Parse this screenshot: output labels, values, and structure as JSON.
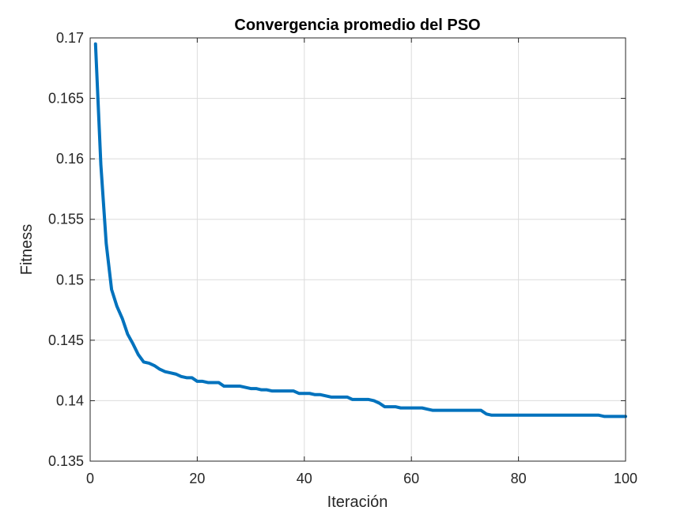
{
  "chart_data": {
    "type": "line",
    "title": "Convergencia promedio del PSO",
    "xlabel": "Iteración",
    "ylabel": "Fitness",
    "xlim": [
      0,
      100
    ],
    "ylim": [
      0.135,
      0.17
    ],
    "xticks": [
      0,
      20,
      40,
      60,
      80,
      100
    ],
    "yticks": [
      0.135,
      0.14,
      0.145,
      0.15,
      0.155,
      0.16,
      0.165,
      0.17
    ],
    "xtick_labels": [
      "0",
      "20",
      "40",
      "60",
      "80",
      "100"
    ],
    "ytick_labels": [
      "0.135",
      "0.14",
      "0.145",
      "0.15",
      "0.155",
      "0.16",
      "0.165",
      "0.17"
    ],
    "grid": true,
    "line_color": "#0072BD",
    "series": [
      {
        "x": [
          1,
          2,
          3,
          4,
          5,
          6,
          7,
          8,
          9,
          10,
          11,
          12,
          13,
          14,
          15,
          16,
          17,
          18,
          19,
          20,
          21,
          22,
          23,
          24,
          25,
          26,
          27,
          28,
          29,
          30,
          31,
          32,
          33,
          34,
          35,
          36,
          37,
          38,
          39,
          40,
          41,
          42,
          43,
          44,
          45,
          46,
          47,
          48,
          49,
          50,
          51,
          52,
          53,
          54,
          55,
          56,
          57,
          58,
          59,
          60,
          61,
          62,
          63,
          64,
          65,
          66,
          67,
          68,
          69,
          70,
          71,
          72,
          73,
          74,
          75,
          76,
          77,
          78,
          79,
          80,
          81,
          82,
          83,
          84,
          85,
          86,
          87,
          88,
          89,
          90,
          91,
          92,
          93,
          94,
          95,
          96,
          97,
          98,
          99,
          100
        ],
        "y": [
          0.1695,
          0.1595,
          0.153,
          0.1492,
          0.1478,
          0.1468,
          0.1455,
          0.1447,
          0.1438,
          0.1432,
          0.1431,
          0.1429,
          0.1426,
          0.1424,
          0.1423,
          0.1422,
          0.142,
          0.1419,
          0.1419,
          0.1416,
          0.1416,
          0.1415,
          0.1415,
          0.1415,
          0.1412,
          0.1412,
          0.1412,
          0.1412,
          0.1411,
          0.141,
          0.141,
          0.1409,
          0.1409,
          0.1408,
          0.1408,
          0.1408,
          0.1408,
          0.1408,
          0.1406,
          0.1406,
          0.1406,
          0.1405,
          0.1405,
          0.1404,
          0.1403,
          0.1403,
          0.1403,
          0.1403,
          0.1401,
          0.1401,
          0.1401,
          0.1401,
          0.14,
          0.1398,
          0.1395,
          0.1395,
          0.1395,
          0.1394,
          0.1394,
          0.1394,
          0.1394,
          0.1394,
          0.1393,
          0.1392,
          0.1392,
          0.1392,
          0.1392,
          0.1392,
          0.1392,
          0.1392,
          0.1392,
          0.1392,
          0.1392,
          0.1389,
          0.1388,
          0.1388,
          0.1388,
          0.1388,
          0.1388,
          0.1388,
          0.1388,
          0.1388,
          0.1388,
          0.1388,
          0.1388,
          0.1388,
          0.1388,
          0.1388,
          0.1388,
          0.1388,
          0.1388,
          0.1388,
          0.1388,
          0.1388,
          0.1388,
          0.1387,
          0.1387,
          0.1387,
          0.1387,
          0.1387
        ]
      }
    ]
  }
}
